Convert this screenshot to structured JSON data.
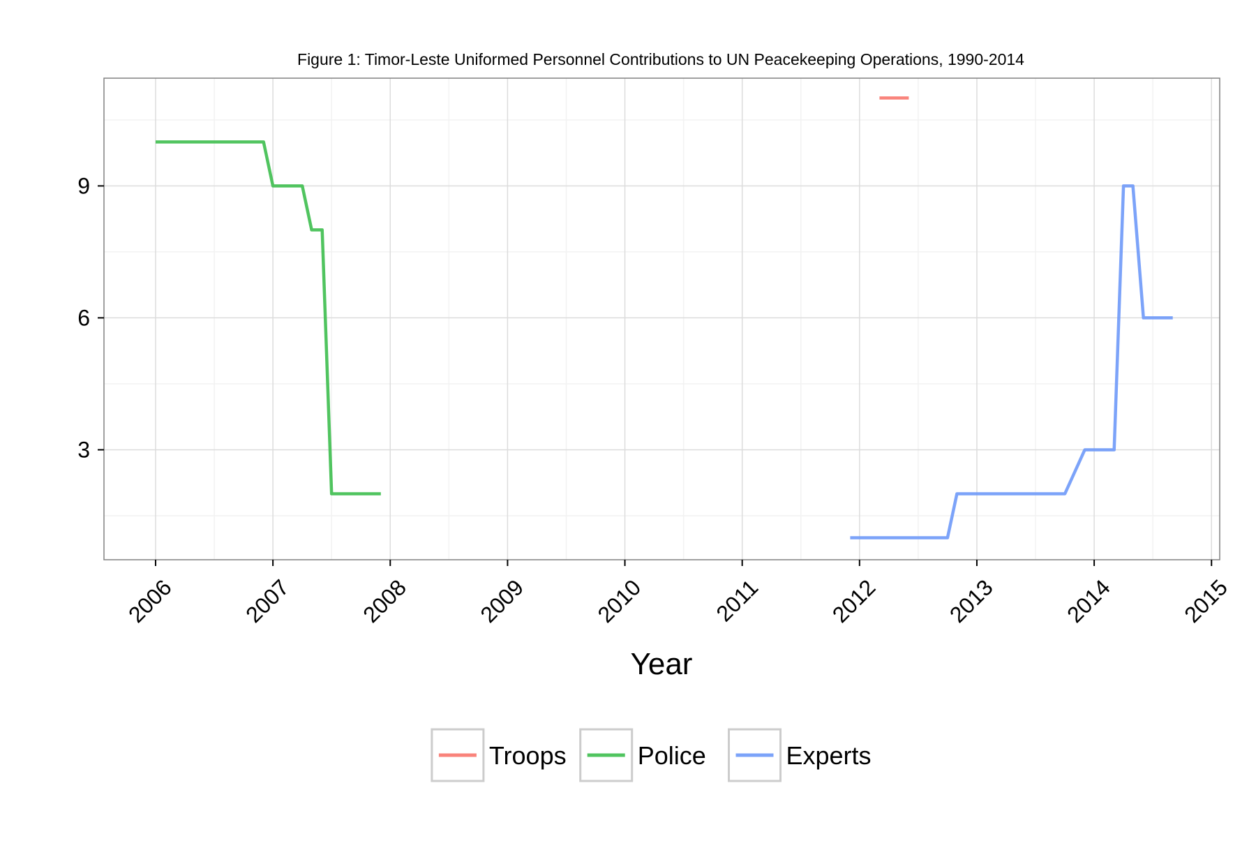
{
  "chart_data": {
    "type": "line",
    "title": "Figure 1: Timor-Leste Uniformed Personnel Contributions to UN Peacekeeping Operations, 1990-2014",
    "xlabel": "Year",
    "ylabel": "",
    "x_ticks": [
      "2006",
      "2007",
      "2008",
      "2009",
      "2010",
      "2011",
      "2012",
      "2013",
      "2014",
      "2015"
    ],
    "y_ticks": [
      "3",
      "6",
      "9"
    ],
    "xlim": [
      2005.56,
      2015.07
    ],
    "ylim": [
      0.5,
      11.45
    ],
    "grid": true,
    "legend_position": "bottom",
    "series": [
      {
        "name": "Troops",
        "color": "#F8766D",
        "points": [
          [
            2012.17,
            11
          ],
          [
            2012.42,
            11
          ]
        ]
      },
      {
        "name": "Police",
        "color": "#3DBE4E",
        "points": [
          [
            2006.0,
            10
          ],
          [
            2006.92,
            10
          ],
          [
            2007.0,
            9
          ],
          [
            2007.25,
            9
          ],
          [
            2007.33,
            8
          ],
          [
            2007.42,
            8
          ],
          [
            2007.5,
            2
          ],
          [
            2007.92,
            2
          ]
        ]
      },
      {
        "name": "Experts",
        "color": "#6E99F8",
        "points": [
          [
            2011.92,
            1
          ],
          [
            2012.75,
            1
          ],
          [
            2012.83,
            2
          ],
          [
            2013.75,
            2
          ],
          [
            2013.92,
            3
          ],
          [
            2014.17,
            3
          ],
          [
            2014.25,
            9
          ],
          [
            2014.33,
            9
          ],
          [
            2014.42,
            6
          ],
          [
            2014.67,
            6
          ]
        ]
      }
    ]
  }
}
